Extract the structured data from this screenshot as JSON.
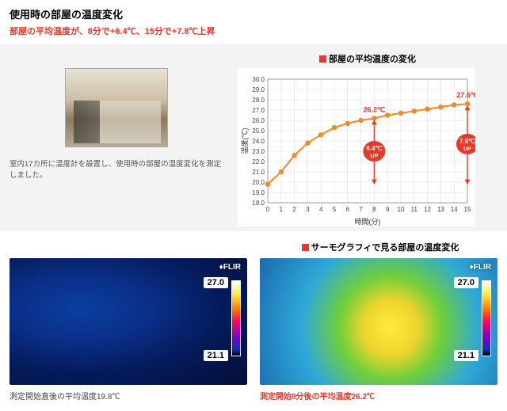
{
  "title": "使用時の部屋の温度変化",
  "subtitle": "部屋の平均温度が、8分で+6.4℃、15分で+7.8℃上昇",
  "subtitle_color": "#e83828",
  "photo_caption": "室内17カ所に温度計を設置し、使用時の部屋の温度変化を測定しました。",
  "chart": {
    "title": "部屋の平均温度の変化",
    "square_color": "#e83828",
    "xlabel": "時間(分)",
    "ylabel": "温度(℃)",
    "xlim": [
      0,
      15
    ],
    "ylim": [
      18,
      30
    ],
    "xtick_step": 1,
    "ytick_step": 1,
    "line_color": "#f08a2a",
    "marker_color": "#f08a2a",
    "marker_radius": 3.2,
    "line_width": 2,
    "grid_color": "#d9d9d9",
    "points": [
      [
        0,
        19.8
      ],
      [
        1,
        21.0
      ],
      [
        2,
        22.6
      ],
      [
        3,
        23.8
      ],
      [
        4,
        24.6
      ],
      [
        5,
        25.3
      ],
      [
        6,
        25.7
      ],
      [
        7,
        26.0
      ],
      [
        8,
        26.2
      ],
      [
        9,
        26.5
      ],
      [
        10,
        26.7
      ],
      [
        11,
        26.9
      ],
      [
        12,
        27.1
      ],
      [
        13,
        27.3
      ],
      [
        14,
        27.5
      ],
      [
        15,
        27.6
      ]
    ],
    "callouts": [
      {
        "x": 8,
        "label": "26.2℃",
        "pill_top": "6.4℃",
        "pill_bot": "UP",
        "pill_color": "#e83828"
      },
      {
        "x": 15,
        "label": "27.6℃",
        "pill_top": "7.8℃",
        "pill_bot": "UP",
        "pill_color": "#e83828"
      }
    ]
  },
  "thermo": {
    "title": "サーモグラフィで見る部屋の温度変化",
    "square_color": "#e83828",
    "flir_label": "♦FLIR",
    "scale_hi": "27.0",
    "scale_lo": "21.1",
    "left_caption": "測定開始直後の平均温度19.8℃",
    "left_caption_color": "#444444",
    "right_caption": "測定開始8分後の平均温度26.2℃",
    "right_caption_color": "#e83828"
  }
}
